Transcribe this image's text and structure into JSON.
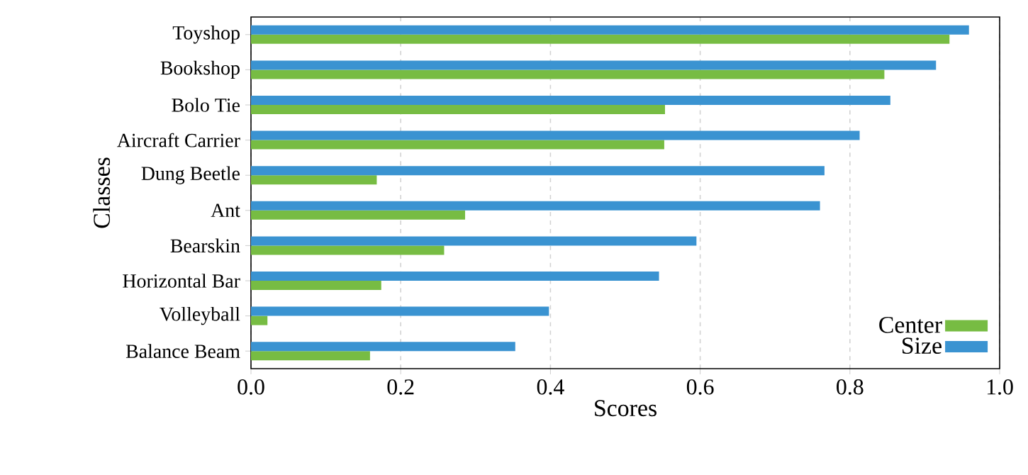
{
  "chart_data": {
    "type": "bar",
    "orientation": "horizontal",
    "xlabel": "Scores",
    "ylabel": "Classes",
    "categories": [
      "Toyshop",
      "Bookshop",
      "Bolo Tie",
      "Aircraft Carrier",
      "Dung Beetle",
      "Ant",
      "Bearskin",
      "Horizontal Bar",
      "Volleyball",
      "Balance Beam"
    ],
    "series": [
      {
        "name": "Center",
        "color": "#77bc43",
        "values": [
          0.933,
          0.846,
          0.553,
          0.552,
          0.168,
          0.286,
          0.258,
          0.174,
          0.022,
          0.159
        ]
      },
      {
        "name": "Size",
        "color": "#3a93d1",
        "values": [
          0.959,
          0.915,
          0.854,
          0.813,
          0.766,
          0.76,
          0.595,
          0.545,
          0.398,
          0.353
        ]
      }
    ],
    "xlim": [
      0,
      1
    ],
    "xticks": [
      {
        "value": 0,
        "label": "0.0"
      },
      {
        "value": 0.2,
        "label": "0.2"
      },
      {
        "value": 0.4,
        "label": "0.4"
      },
      {
        "value": 0.6,
        "label": "0.6"
      },
      {
        "value": 0.8,
        "label": "0.8"
      },
      {
        "value": 1,
        "label": "1.0"
      }
    ],
    "grid": "x",
    "legend": "bottom right"
  }
}
